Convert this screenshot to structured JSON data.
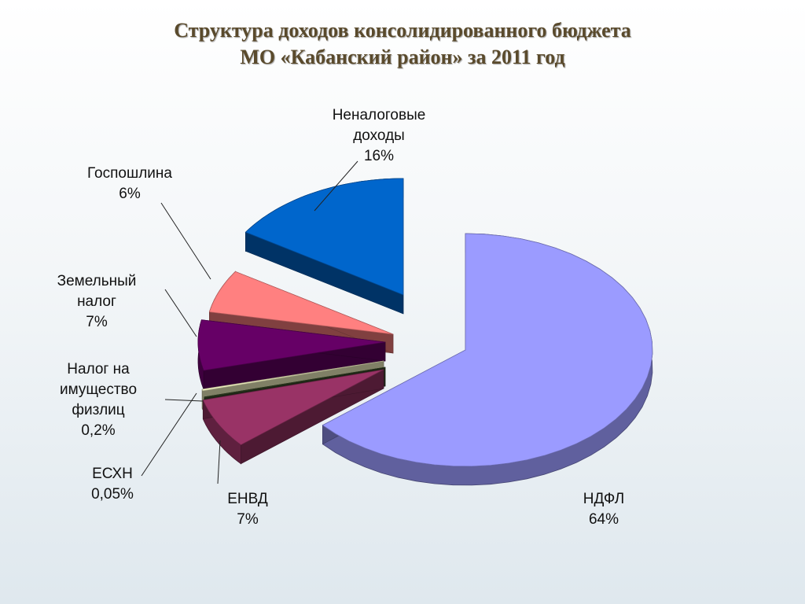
{
  "title": {
    "line1": "Структура доходов консолидированного бюджета",
    "line2": "МО «Кабанский район» за 2011 год"
  },
  "chart_data": {
    "type": "pie",
    "title": "Структура доходов консолидированного бюджета МО «Кабанский район» за 2011 год",
    "style": "3d-exploded",
    "slices": [
      {
        "name": "НДФЛ",
        "value": 64,
        "label_lines": [
          "НДФЛ",
          "64%"
        ],
        "color": "#9b9bff"
      },
      {
        "name": "ЕНВД",
        "value": 7,
        "label_lines": [
          "ЕНВД",
          "7%"
        ],
        "color": "#993366"
      },
      {
        "name": "ЕСХН",
        "value": 0.05,
        "label_lines": [
          "ЕСХН",
          "0,05%"
        ],
        "color": "#3a4a2a"
      },
      {
        "name": "Налог на имущество физлиц",
        "value": 0.2,
        "label_lines": [
          "Налог на",
          "имущество",
          "физлиц",
          "0,2%"
        ],
        "color": "#ffffcc"
      },
      {
        "name": "Земельный налог",
        "value": 7,
        "label_lines": [
          "Земельный",
          "налог",
          "7%"
        ],
        "color": "#660066"
      },
      {
        "name": "Госпошлина",
        "value": 6,
        "label_lines": [
          "Госпошлина",
          "6%"
        ],
        "color": "#ff8080"
      },
      {
        "name": "Неналоговые доходы",
        "value": 16,
        "label_lines": [
          "Неналоговые",
          "доходы",
          "16%"
        ],
        "color": "#0066cc"
      }
    ]
  }
}
